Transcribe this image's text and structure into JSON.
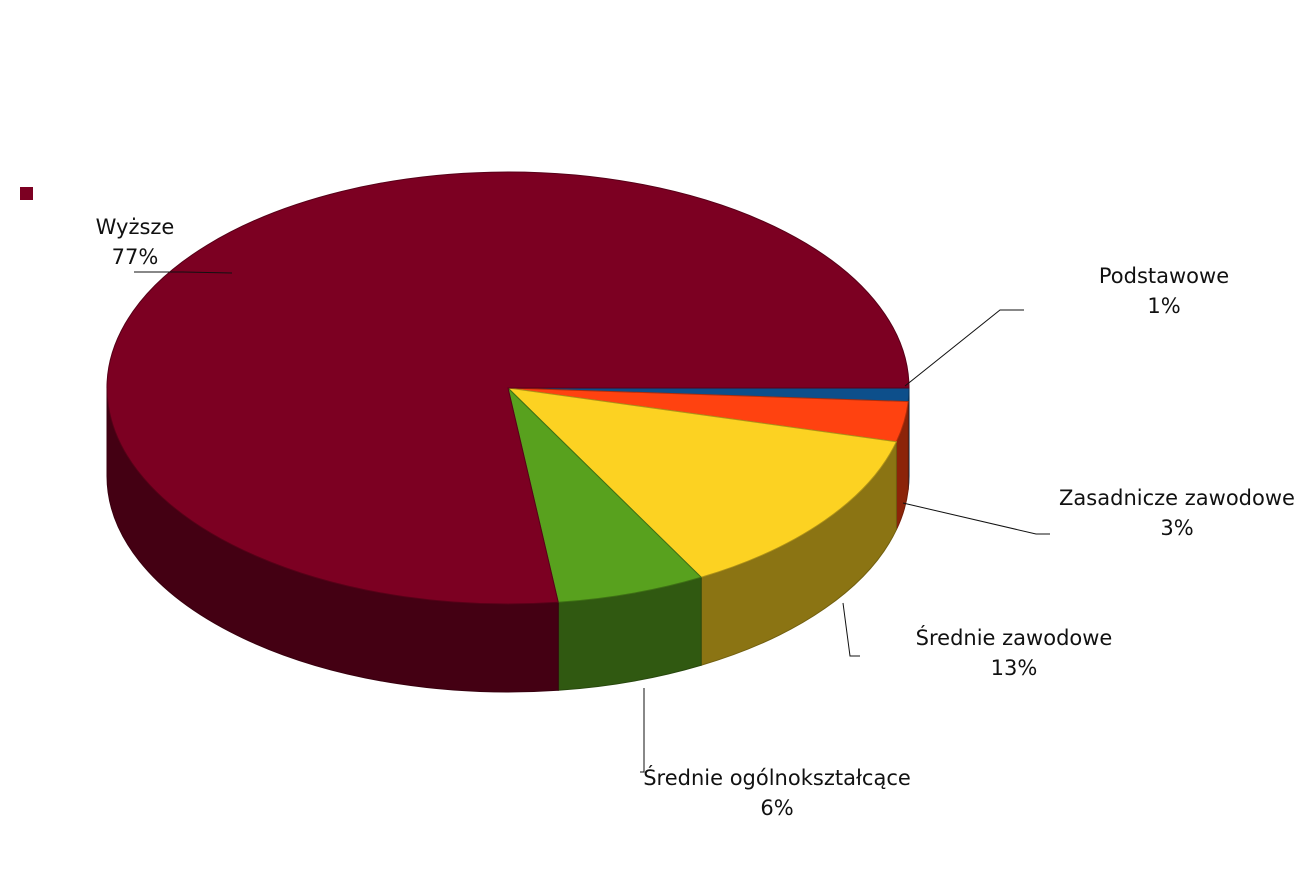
{
  "chart_data": {
    "type": "pie",
    "title": "",
    "three_d": true,
    "legend": "top-left",
    "slices": [
      {
        "label": "Podstawowe",
        "pct_label": "1%",
        "value": 1,
        "color": "#0d4f8b"
      },
      {
        "label": "Zasadnicze  zawodowe",
        "pct_label": "3%",
        "value": 3,
        "color": "#ff4210"
      },
      {
        "label": "Średnie zawodowe",
        "pct_label": "13%",
        "value": 13,
        "color": "#fcd222"
      },
      {
        "label": "Średnie ogólnokształcące",
        "pct_label": "6%",
        "value": 6,
        "color": "#58a11e"
      },
      {
        "label": "Wyższe",
        "pct_label": "77%",
        "value": 77,
        "color": "#7c0022"
      }
    ]
  }
}
